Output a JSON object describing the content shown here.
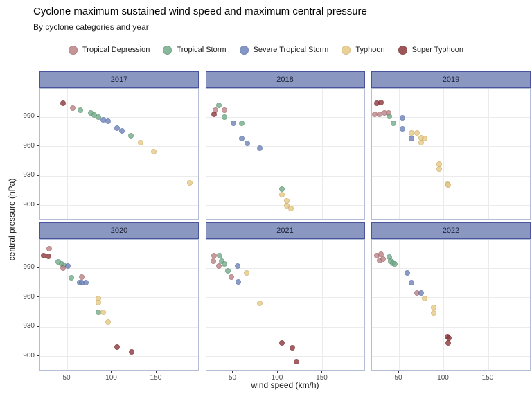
{
  "title": "Cyclone maximum sustained wind speed and maximum central pressure",
  "subtitle": "By cyclone categories and year",
  "axes": {
    "x_label": "wind speed (km/h)",
    "y_label": "central pressure (hPa)",
    "x_ticks": [
      50,
      100,
      150
    ],
    "y_ticks": [
      990,
      960,
      930,
      900
    ]
  },
  "legend": [
    {
      "key": "TD",
      "label": "Tropical Depression"
    },
    {
      "key": "TS",
      "label": "Tropical Storm"
    },
    {
      "key": "STS",
      "label": "Severe Tropical Storm"
    },
    {
      "key": "T",
      "label": "Typhoon"
    },
    {
      "key": "ST",
      "label": "Super Typhoon"
    }
  ],
  "palette": {
    "TD": {
      "fill": "#bc8386",
      "stroke": "#a26a6e"
    },
    "TS": {
      "fill": "#74ad8c",
      "stroke": "#5c9474"
    },
    "STS": {
      "fill": "#6f84ba",
      "stroke": "#5a6fa6"
    },
    "T": {
      "fill": "#e7ca86",
      "stroke": "#cfb068"
    },
    "ST": {
      "fill": "#8e383b",
      "stroke": "#7a2c30"
    }
  },
  "chart_data": {
    "type": "scatter",
    "title": "Cyclone maximum sustained wind speed and maximum central pressure",
    "xlabel": "wind speed (km/h)",
    "ylabel": "central pressure (hPa)",
    "x_range": [
      20,
      198
    ],
    "y_range": [
      885,
      1015
    ],
    "grid": true,
    "legend_position": "top",
    "point_format": "[wind_kmh, pressure_hpa, category_key]",
    "facets": [
      {
        "year": "2017",
        "points": [
          [
            45,
            1004,
            "ST"
          ],
          [
            56,
            999,
            "TD"
          ],
          [
            65,
            997,
            "TS"
          ],
          [
            76,
            994,
            "TS"
          ],
          [
            80,
            992,
            "TS"
          ],
          [
            85,
            990,
            "TS"
          ],
          [
            90,
            987,
            "STS"
          ],
          [
            96,
            986,
            "STS"
          ],
          [
            106,
            979,
            "STS"
          ],
          [
            111,
            976,
            "STS"
          ],
          [
            121,
            971,
            "TS"
          ],
          [
            132,
            964,
            "T"
          ],
          [
            147,
            955,
            "T"
          ],
          [
            187,
            923,
            "T"
          ]
        ]
      },
      {
        "year": "2018",
        "points": [
          [
            34,
            1002,
            "TS"
          ],
          [
            30,
            997,
            "TD"
          ],
          [
            40,
            997,
            "TD"
          ],
          [
            29,
            993,
            "ST"
          ],
          [
            40,
            990,
            "TS"
          ],
          [
            50,
            984,
            "STS"
          ],
          [
            60,
            984,
            "TS"
          ],
          [
            60,
            968,
            "STS"
          ],
          [
            66,
            963,
            "STS"
          ],
          [
            80,
            958,
            "STS"
          ],
          [
            105,
            917,
            "TS"
          ],
          [
            105,
            911,
            "T"
          ],
          [
            110,
            905,
            "T"
          ],
          [
            110,
            900,
            "T"
          ],
          [
            115,
            897,
            "T"
          ]
        ]
      },
      {
        "year": "2019",
        "points": [
          [
            25,
            1004,
            "ST"
          ],
          [
            30,
            1005,
            "ST"
          ],
          [
            23,
            993,
            "TD"
          ],
          [
            28,
            993,
            "TD"
          ],
          [
            34,
            994,
            "TD"
          ],
          [
            38,
            994,
            "TD"
          ],
          [
            39,
            991,
            "TS"
          ],
          [
            44,
            984,
            "TS"
          ],
          [
            54,
            989,
            "STS"
          ],
          [
            54,
            978,
            "STS"
          ],
          [
            64,
            974,
            "T"
          ],
          [
            70,
            974,
            "T"
          ],
          [
            64,
            968,
            "STS"
          ],
          [
            75,
            969,
            "T"
          ],
          [
            79,
            968,
            "T"
          ],
          [
            75,
            964,
            "T"
          ],
          [
            95,
            942,
            "T"
          ],
          [
            95,
            937,
            "T"
          ],
          [
            104,
            922,
            "T"
          ],
          [
            105,
            921,
            "T"
          ]
        ]
      },
      {
        "year": "2020",
        "points": [
          [
            30,
            1010,
            "TD"
          ],
          [
            24,
            1003,
            "ST"
          ],
          [
            29,
            1002,
            "ST"
          ],
          [
            40,
            996,
            "TS"
          ],
          [
            44,
            994,
            "TS"
          ],
          [
            46,
            993,
            "TS"
          ],
          [
            45,
            990,
            "TD"
          ],
          [
            51,
            992,
            "STS"
          ],
          [
            55,
            980,
            "TS"
          ],
          [
            66,
            981,
            "TD"
          ],
          [
            64,
            975,
            "STS"
          ],
          [
            66,
            975,
            "STS"
          ],
          [
            71,
            975,
            "STS"
          ],
          [
            85,
            959,
            "T"
          ],
          [
            85,
            955,
            "T"
          ],
          [
            85,
            945,
            "TS"
          ],
          [
            90,
            945,
            "T"
          ],
          [
            96,
            935,
            "T"
          ],
          [
            106,
            910,
            "ST"
          ],
          [
            122,
            905,
            "ST"
          ]
        ]
      },
      {
        "year": "2021",
        "points": [
          [
            29,
            1003,
            "TD"
          ],
          [
            35,
            1003,
            "TS"
          ],
          [
            28,
            997,
            "TD"
          ],
          [
            37,
            997,
            "TS"
          ],
          [
            34,
            992,
            "TD"
          ],
          [
            40,
            994,
            "TS"
          ],
          [
            55,
            992,
            "STS"
          ],
          [
            44,
            987,
            "TS"
          ],
          [
            65,
            985,
            "T"
          ],
          [
            48,
            981,
            "TD"
          ],
          [
            56,
            976,
            "STS"
          ],
          [
            80,
            954,
            "T"
          ],
          [
            105,
            914,
            "ST"
          ],
          [
            116,
            909,
            "ST"
          ],
          [
            121,
            895,
            "ST"
          ]
        ]
      },
      {
        "year": "2022",
        "points": [
          [
            25,
            1003,
            "TD"
          ],
          [
            30,
            1004,
            "TD"
          ],
          [
            28,
            998,
            "TD"
          ],
          [
            32,
            999,
            "TD"
          ],
          [
            39,
            1001,
            "TS"
          ],
          [
            41,
            997,
            "TS"
          ],
          [
            43,
            995,
            "TS"
          ],
          [
            45,
            994,
            "TS"
          ],
          [
            59,
            985,
            "STS"
          ],
          [
            64,
            975,
            "STS"
          ],
          [
            70,
            965,
            "TD"
          ],
          [
            75,
            965,
            "STS"
          ],
          [
            79,
            959,
            "T"
          ],
          [
            89,
            950,
            "T"
          ],
          [
            89,
            944,
            "T"
          ],
          [
            104,
            920,
            "ST"
          ],
          [
            106,
            919,
            "ST"
          ],
          [
            105,
            914,
            "ST"
          ]
        ]
      }
    ]
  }
}
